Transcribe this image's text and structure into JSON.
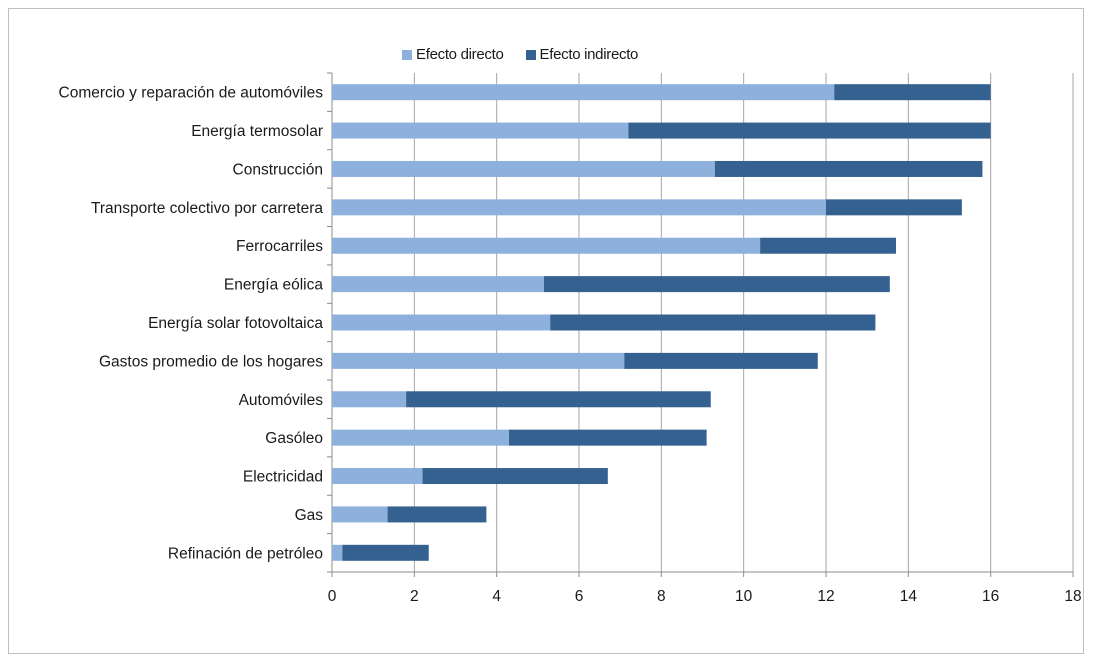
{
  "chart_data": {
    "type": "bar",
    "orientation": "horizontal",
    "stacked": true,
    "categories": [
      "Comercio y reparación de automóviles",
      "Energía termosolar",
      "Construcción",
      "Transporte colectivo por carretera",
      "Ferrocarriles",
      "Energía eólica",
      "Energía solar fotovoltaica",
      "Gastos promedio de los hogares",
      "Automóviles",
      "Gasóleo",
      "Electricidad",
      "Gas",
      "Refinación de petróleo"
    ],
    "series": [
      {
        "name": "Efecto directo",
        "color": "#8eb0dc",
        "values": [
          12.2,
          7.2,
          9.3,
          12.0,
          10.4,
          5.15,
          5.3,
          7.1,
          1.8,
          4.3,
          2.2,
          1.35,
          0.25
        ]
      },
      {
        "name": "Efecto indirecto",
        "color": "#34618f",
        "values": [
          3.8,
          8.8,
          6.5,
          3.3,
          3.3,
          8.4,
          7.9,
          4.7,
          7.4,
          4.8,
          4.5,
          2.4,
          2.1
        ]
      }
    ],
    "xlim": [
      0,
      18
    ],
    "xticks": [
      "0",
      "2",
      "4",
      "6",
      "8",
      "10",
      "12",
      "14",
      "16",
      "18"
    ],
    "grid": true,
    "legend_position": "top"
  }
}
